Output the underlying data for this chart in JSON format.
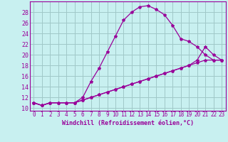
{
  "xlabel": "Windchill (Refroidissement éolien,°C)",
  "background_color": "#c8f0f0",
  "grid_color": "#a0c8c8",
  "line_color": "#990099",
  "x_values": [
    0,
    1,
    2,
    3,
    4,
    5,
    6,
    7,
    8,
    9,
    10,
    11,
    12,
    13,
    14,
    15,
    16,
    17,
    18,
    19,
    20,
    21,
    22,
    23
  ],
  "series1": [
    11,
    10.5,
    11,
    11,
    11,
    11,
    12,
    15,
    17.5,
    20.5,
    23.5,
    26.5,
    28,
    29,
    29.2,
    28.5,
    27.5,
    25.5,
    23,
    22.5,
    21.5,
    20,
    19,
    19
  ],
  "series2": [
    11,
    10.5,
    11,
    11,
    11,
    11,
    11.5,
    12,
    12.5,
    13,
    13.5,
    14,
    14.5,
    15,
    15.5,
    16,
    16.5,
    17,
    17.5,
    18,
    18.5,
    19,
    19,
    19
  ],
  "series3": [
    11,
    10.5,
    11,
    11,
    11,
    11,
    11.5,
    12,
    12.5,
    13,
    13.5,
    14,
    14.5,
    15,
    15.5,
    16,
    16.5,
    17,
    17.5,
    18,
    19,
    21.5,
    20,
    19
  ],
  "ylim": [
    9.5,
    30
  ],
  "xlim": [
    -0.5,
    23.5
  ],
  "yticks": [
    10,
    12,
    14,
    16,
    18,
    20,
    22,
    24,
    26,
    28
  ],
  "xticks": [
    0,
    1,
    2,
    3,
    4,
    5,
    6,
    7,
    8,
    9,
    10,
    11,
    12,
    13,
    14,
    15,
    16,
    17,
    18,
    19,
    20,
    21,
    22,
    23
  ],
  "xlabel_fontsize": 6,
  "tick_fontsize": 5.5,
  "ytick_fontsize": 6
}
